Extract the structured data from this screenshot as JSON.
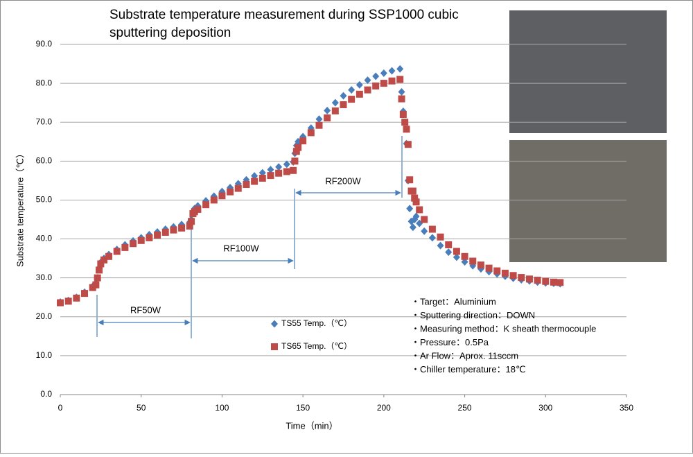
{
  "chart_data": {
    "type": "scatter",
    "title": "Substrate temperature measurement during SSP1000 cubic sputtering deposition",
    "x_label": "Time（min）",
    "y_label": "Substrate temperature（℃）",
    "xlim": [
      0,
      350
    ],
    "xticks": [
      0,
      50,
      100,
      150,
      200,
      250,
      300,
      350
    ],
    "ylim": [
      0,
      90
    ],
    "yticks": [
      {
        "value": 0,
        "label": "0.0"
      },
      {
        "value": 10,
        "label": "10.0"
      },
      {
        "value": 20,
        "label": "20.0"
      },
      {
        "value": 30,
        "label": "30.0"
      },
      {
        "value": 40,
        "label": "40.0"
      },
      {
        "value": 50,
        "label": "50.0"
      },
      {
        "value": 60,
        "label": "60.0"
      },
      {
        "value": 70,
        "label": "70.0"
      },
      {
        "value": 80,
        "label": "80.0"
      },
      {
        "value": 90,
        "label": "90.0"
      }
    ],
    "grid": true,
    "x": [
      0,
      5,
      10,
      15,
      20,
      22,
      23,
      24,
      25,
      27,
      30,
      35,
      40,
      45,
      50,
      55,
      60,
      65,
      70,
      75,
      80,
      81,
      82,
      83,
      85,
      90,
      95,
      100,
      105,
      110,
      115,
      120,
      125,
      130,
      135,
      140,
      144,
      145,
      146,
      147,
      150,
      155,
      160,
      165,
      170,
      175,
      180,
      185,
      190,
      195,
      200,
      205,
      210,
      211,
      212,
      213,
      214,
      215,
      216,
      217,
      218,
      219,
      220,
      222,
      225,
      230,
      235,
      240,
      245,
      250,
      255,
      260,
      265,
      270,
      275,
      280,
      285,
      290,
      295,
      300,
      305,
      309
    ],
    "series": [
      {
        "name": "TS55 Temp.（℃）",
        "color": "#4a7ebb",
        "marker": "diamond",
        "values": [
          23.8,
          24.2,
          25,
          26.3,
          27.8,
          28.5,
          30,
          32.5,
          34,
          35,
          36,
          37.3,
          38.5,
          39.5,
          40.3,
          41.1,
          41.8,
          42.5,
          43.1,
          43.7,
          44.3,
          45,
          47,
          47.8,
          48.5,
          49.8,
          51,
          52.2,
          53.2,
          54.2,
          55.2,
          56.2,
          57,
          57.8,
          58.5,
          59.2,
          59.8,
          62,
          64,
          65,
          66.3,
          68.5,
          70.8,
          73,
          75,
          76.8,
          78.3,
          79.6,
          80.8,
          81.8,
          82.6,
          83.2,
          83.7,
          77.8,
          72.8,
          70,
          64.5,
          55,
          47.8,
          44.5,
          43,
          45,
          45.8,
          44,
          42,
          40.3,
          38.3,
          36.6,
          35.3,
          34.1,
          33.1,
          32.3,
          31.6,
          31,
          30.4,
          29.9,
          29.5,
          29.2,
          28.9,
          28.7,
          28.6,
          28.5
        ]
      },
      {
        "name": "TS65 Temp.（℃）",
        "color": "#be4b48",
        "marker": "square",
        "values": [
          23.6,
          24,
          24.8,
          26,
          27.5,
          28.2,
          30,
          32,
          33.6,
          34.6,
          35.5,
          36.8,
          37.8,
          38.8,
          39.6,
          40.3,
          41,
          41.7,
          42.3,
          42.8,
          43.3,
          44.5,
          46.5,
          47,
          47.6,
          48.8,
          50,
          51.1,
          52.1,
          53,
          54,
          54.8,
          55.6,
          56.3,
          56.9,
          57.3,
          57.6,
          60,
          62.5,
          63.5,
          65.2,
          67.3,
          69.2,
          71.1,
          72.9,
          74.5,
          75.9,
          77.2,
          78.3,
          79.3,
          80,
          80.6,
          81,
          76,
          72,
          70,
          68.2,
          64.3,
          55.2,
          52.3,
          52.3,
          50.5,
          49.5,
          47.5,
          45,
          42.5,
          40.5,
          38.5,
          36.8,
          35.5,
          34.3,
          33.3,
          32.5,
          31.8,
          31.2,
          30.6,
          30.1,
          29.7,
          29.4,
          29.1,
          28.9,
          28.8
        ]
      }
    ],
    "annotations": [
      "RF50W",
      "RF100W",
      "RF200W"
    ],
    "notes": [
      "・Target：Aluminium",
      "・Sputtering direction：DOWN",
      "・Measuring method：K sheath thermocouple",
      "・Pressure：0.5Pa",
      "・Ar Flow：Aprox. 11sccm",
      "・Chiller temperature：18℃"
    ]
  }
}
